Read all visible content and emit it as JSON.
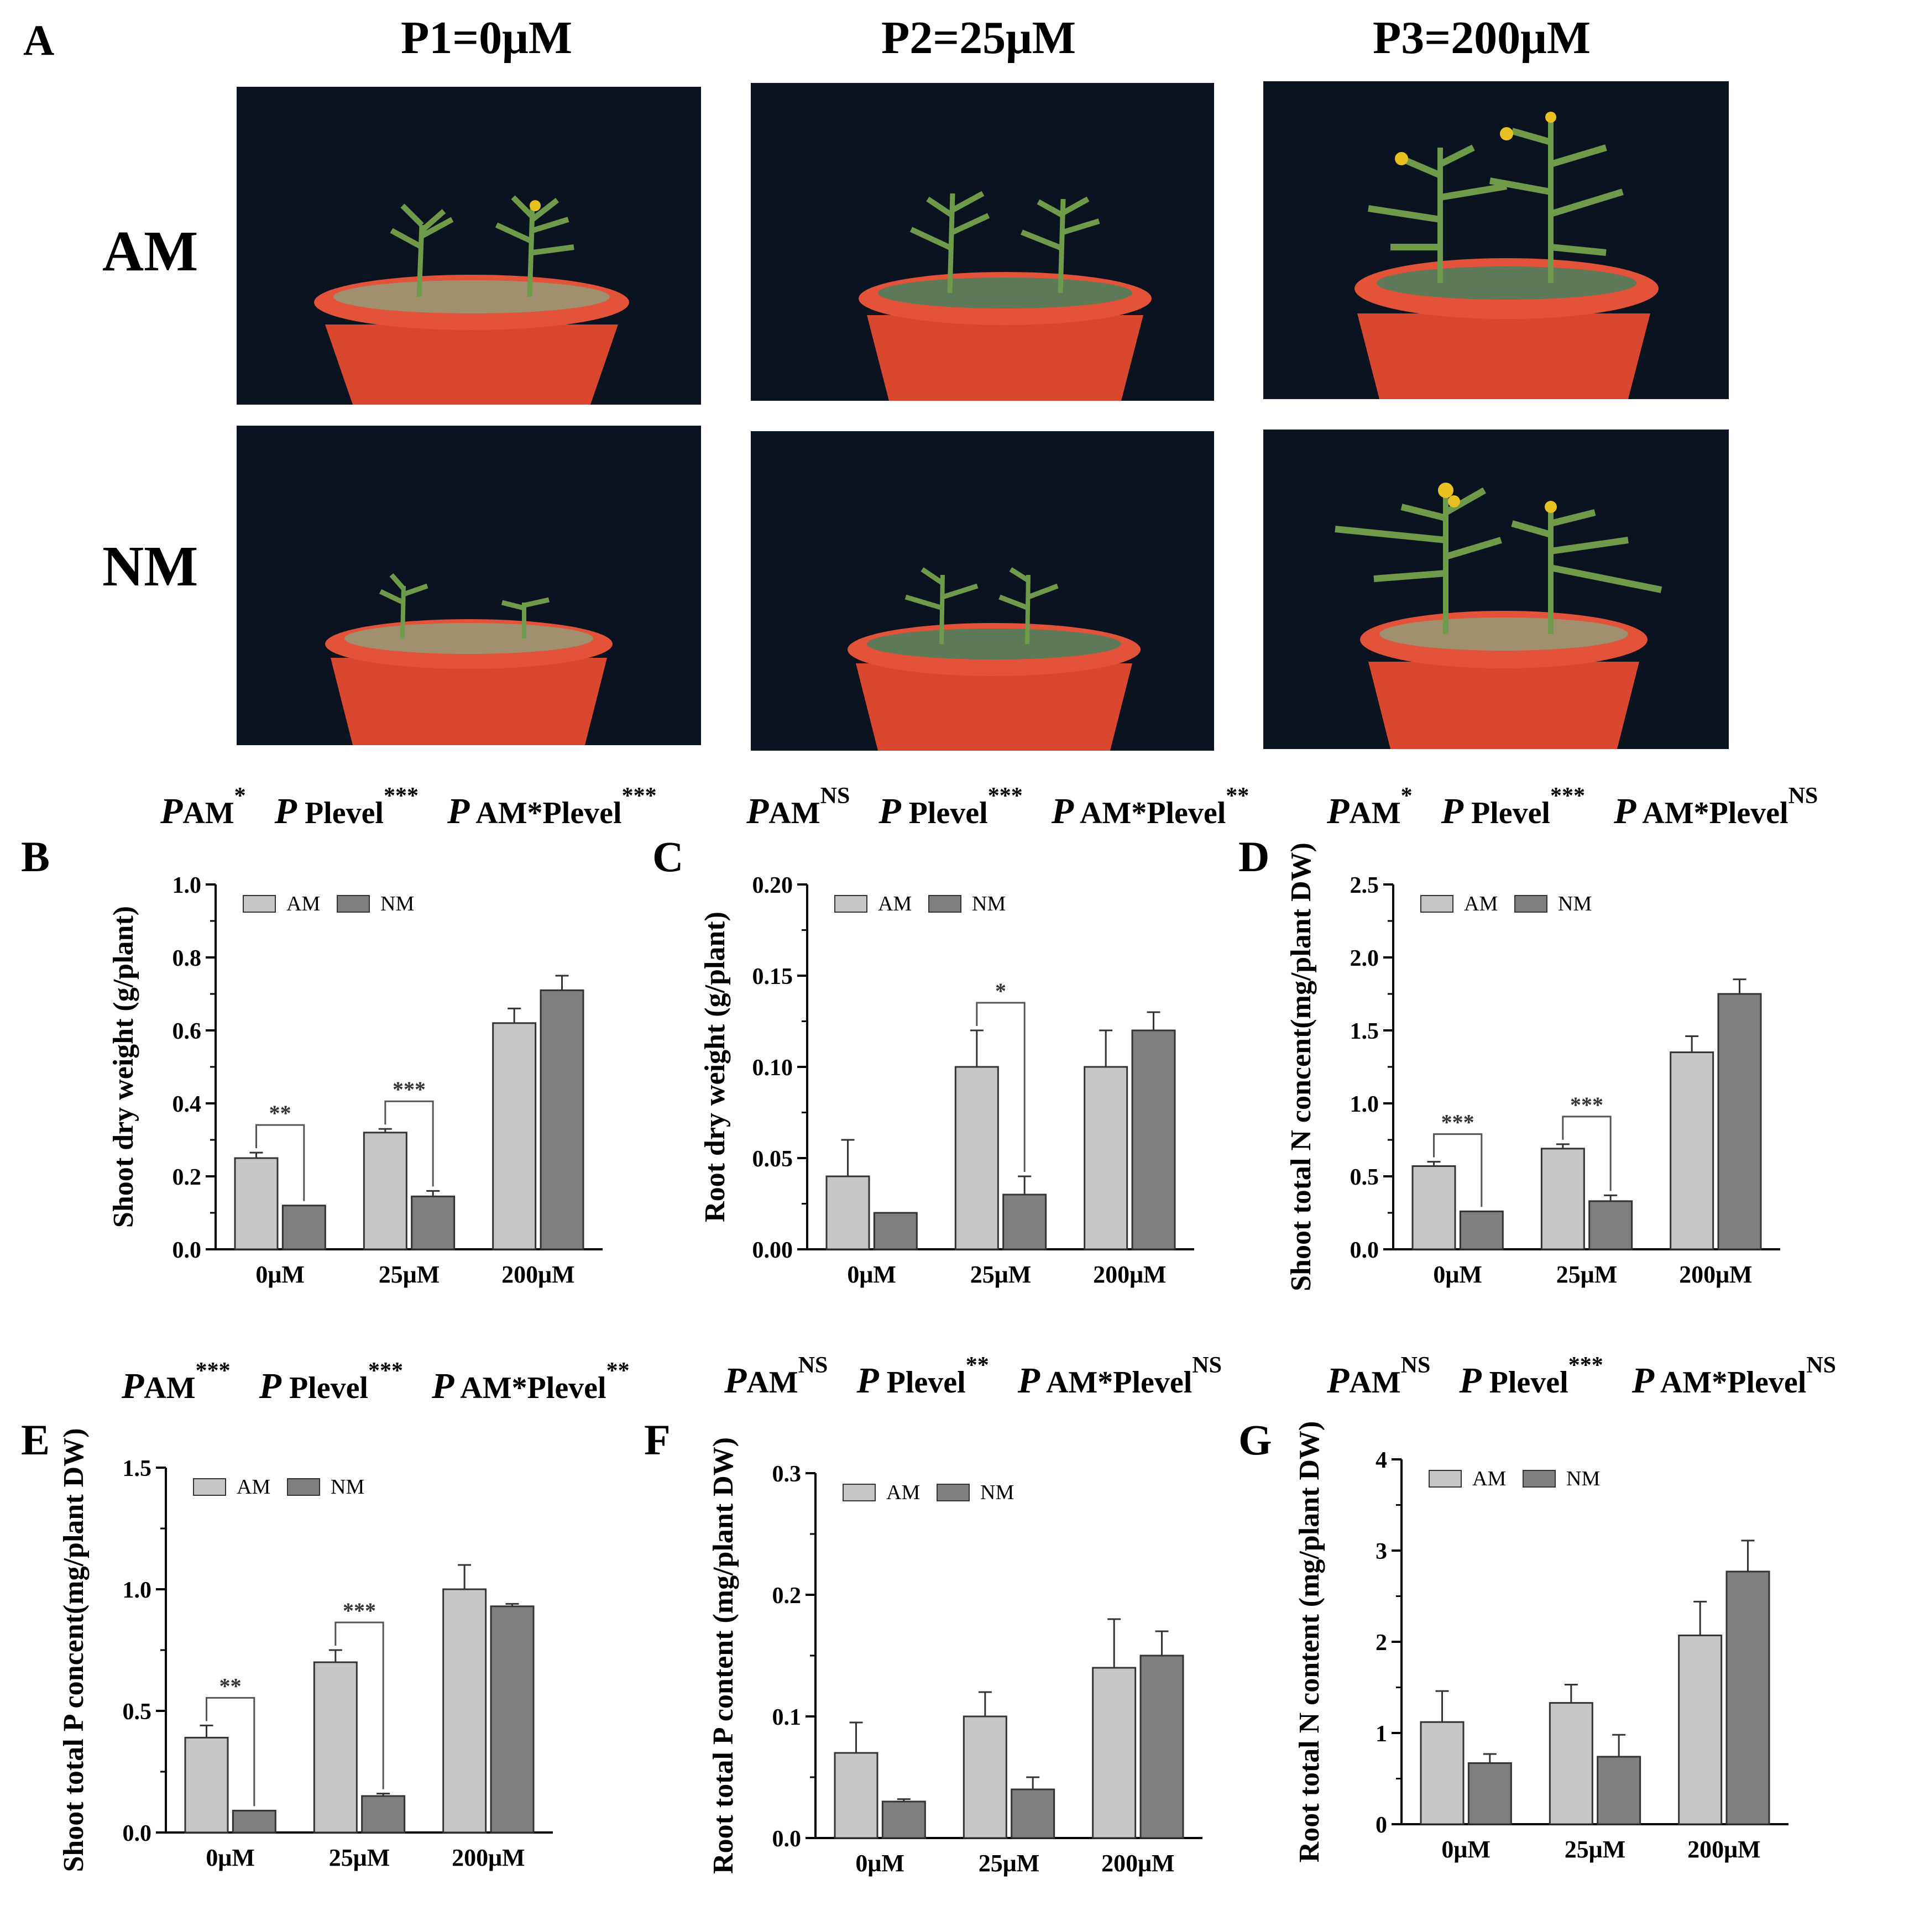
{
  "figure": {
    "panel_a": {
      "letter": "A",
      "columns": [
        "P1=0μM",
        "P2=25μM",
        "P3=200μM"
      ],
      "rows": [
        "AM",
        "NM"
      ]
    },
    "colors": {
      "AM": "#c6c6c6",
      "NM": "#7f7f7f",
      "pot": "#d9472f",
      "backdrop": "#0c1320",
      "plant": "#6f9a4a"
    }
  },
  "chart_data": [
    {
      "id": "B",
      "letter": "B",
      "type": "bar",
      "stats": [
        {
          "label": "P",
          "sub": "AM",
          "sig": "*"
        },
        {
          "label": "P",
          "sub": "Plevel",
          "sig": "***"
        },
        {
          "label": "P",
          "sub": "AM*Plevel",
          "sig": "***"
        }
      ],
      "ylabel": "Shoot dry weight (g/plant)",
      "ylim": [
        0,
        1.0
      ],
      "yticks": [
        "0.0",
        "0.2",
        "0.4",
        "0.6",
        "0.8",
        "1.0"
      ],
      "categories": [
        "0μM",
        "25μM",
        "200μM"
      ],
      "legend": [
        "AM",
        "NM"
      ],
      "series": [
        {
          "name": "AM",
          "values": [
            0.25,
            0.32,
            0.62
          ],
          "errors": [
            0.015,
            0.01,
            0.04
          ]
        },
        {
          "name": "NM",
          "values": [
            0.12,
            0.145,
            0.71
          ],
          "errors": [
            0,
            0.015,
            0.04
          ]
        }
      ],
      "brackets": [
        {
          "category": 0,
          "label": "**"
        },
        {
          "category": 1,
          "label": "***"
        }
      ]
    },
    {
      "id": "C",
      "letter": "C",
      "type": "bar",
      "stats": [
        {
          "label": "P",
          "sub": "AM",
          "sig": "NS"
        },
        {
          "label": "P",
          "sub": "Plevel",
          "sig": "***"
        },
        {
          "label": "P",
          "sub": "AM*Plevel",
          "sig": "**"
        }
      ],
      "ylabel": "Root dry weight (g/plant)",
      "ylim": [
        0,
        0.2
      ],
      "yticks": [
        "0.00",
        "0.05",
        "0.10",
        "0.15",
        "0.20"
      ],
      "categories": [
        "0μM",
        "25μM",
        "200μM"
      ],
      "legend": [
        "AM",
        "NM"
      ],
      "series": [
        {
          "name": "AM",
          "values": [
            0.04,
            0.1,
            0.1
          ],
          "errors": [
            0.02,
            0.02,
            0.02
          ]
        },
        {
          "name": "NM",
          "values": [
            0.02,
            0.03,
            0.12
          ],
          "errors": [
            0,
            0.01,
            0.01
          ]
        }
      ],
      "brackets": [
        {
          "category": 1,
          "label": "*"
        }
      ]
    },
    {
      "id": "D",
      "letter": "D",
      "type": "bar",
      "stats": [
        {
          "label": "P",
          "sub": "AM",
          "sig": "*"
        },
        {
          "label": "P",
          "sub": "Plevel",
          "sig": "***"
        },
        {
          "label": "P",
          "sub": "AM*Plevel",
          "sig": "NS"
        }
      ],
      "ylabel": "Shoot total N concent(mg/plant DW)",
      "ylim": [
        0,
        2.5
      ],
      "yticks": [
        "0.0",
        "0.5",
        "1.0",
        "1.5",
        "2.0",
        "2.5"
      ],
      "categories": [
        "0μM",
        "25μM",
        "200μM"
      ],
      "legend": [
        "AM",
        "NM"
      ],
      "series": [
        {
          "name": "AM",
          "values": [
            0.57,
            0.69,
            1.35
          ],
          "errors": [
            0.03,
            0.03,
            0.11
          ]
        },
        {
          "name": "NM",
          "values": [
            0.26,
            0.33,
            1.75
          ],
          "errors": [
            0,
            0.04,
            0.1
          ]
        }
      ],
      "brackets": [
        {
          "category": 0,
          "label": "***"
        },
        {
          "category": 1,
          "label": "***"
        }
      ]
    },
    {
      "id": "E",
      "letter": "E",
      "type": "bar",
      "stats": [
        {
          "label": "P",
          "sub": "AM",
          "sig": "***"
        },
        {
          "label": "P",
          "sub": "Plevel",
          "sig": "***"
        },
        {
          "label": "P",
          "sub": "AM*Plevel",
          "sig": "**"
        }
      ],
      "ylabel": "Shoot total P concent(mg/plant DW)",
      "ylim": [
        0,
        1.5
      ],
      "yticks": [
        "0.0",
        "0.5",
        "1.0",
        "1.5"
      ],
      "categories": [
        "0μM",
        "25μM",
        "200μM"
      ],
      "legend": [
        "AM",
        "NM"
      ],
      "series": [
        {
          "name": "AM",
          "values": [
            0.39,
            0.7,
            1.0
          ],
          "errors": [
            0.05,
            0.05,
            0.1
          ]
        },
        {
          "name": "NM",
          "values": [
            0.09,
            0.15,
            0.93
          ],
          "errors": [
            0,
            0.01,
            0.01
          ]
        }
      ],
      "brackets": [
        {
          "category": 0,
          "label": "**"
        },
        {
          "category": 1,
          "label": "***"
        }
      ]
    },
    {
      "id": "F",
      "letter": "F",
      "type": "bar",
      "stats": [
        {
          "label": "P",
          "sub": "AM",
          "sig": "NS"
        },
        {
          "label": "P",
          "sub": "Plevel",
          "sig": "**"
        },
        {
          "label": "P",
          "sub": "AM*Plevel",
          "sig": "NS"
        }
      ],
      "ylabel": "Root total P content (mg/plant DW)",
      "ylim": [
        0,
        0.3
      ],
      "yticks": [
        "0.0",
        "0.1",
        "0.2",
        "0.3"
      ],
      "categories": [
        "0μM",
        "25μM",
        "200μM"
      ],
      "legend": [
        "AM",
        "NM"
      ],
      "series": [
        {
          "name": "AM",
          "values": [
            0.07,
            0.1,
            0.14
          ],
          "errors": [
            0.025,
            0.02,
            0.04
          ]
        },
        {
          "name": "NM",
          "values": [
            0.03,
            0.04,
            0.15
          ],
          "errors": [
            0.002,
            0.01,
            0.02
          ]
        }
      ],
      "brackets": []
    },
    {
      "id": "G",
      "letter": "G",
      "type": "bar",
      "stats": [
        {
          "label": "P",
          "sub": "AM",
          "sig": "NS"
        },
        {
          "label": "P",
          "sub": "Plevel",
          "sig": "***"
        },
        {
          "label": "P",
          "sub": "AM*Plevel",
          "sig": "NS"
        }
      ],
      "ylabel": "Root total N content (mg/plant DW)",
      "ylim": [
        0,
        4
      ],
      "yticks": [
        "0",
        "1",
        "2",
        "3",
        "4"
      ],
      "categories": [
        "0μM",
        "25μM",
        "200μM"
      ],
      "legend": [
        "AM",
        "NM"
      ],
      "series": [
        {
          "name": "AM",
          "values": [
            1.12,
            1.33,
            2.07
          ],
          "errors": [
            0.34,
            0.2,
            0.37
          ]
        },
        {
          "name": "NM",
          "values": [
            0.67,
            0.74,
            2.77
          ],
          "errors": [
            0.1,
            0.24,
            0.34
          ]
        }
      ],
      "brackets": []
    }
  ]
}
